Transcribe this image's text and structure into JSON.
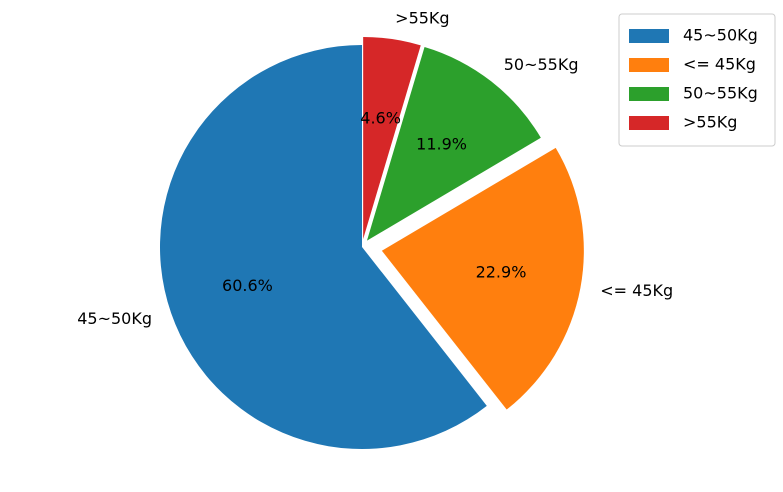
{
  "chart_data": {
    "type": "pie",
    "categories": [
      "45~50Kg",
      "<= 45Kg",
      "50~55Kg",
      ">55Kg"
    ],
    "values": [
      60.6,
      22.9,
      11.9,
      4.6
    ],
    "value_labels": [
      "60.6%",
      "22.9%",
      "11.9%",
      "4.6%"
    ],
    "colors": [
      "#1f77b4",
      "#ff7f0e",
      "#2ca02c",
      "#d62728"
    ],
    "explode": [
      0,
      0.1,
      0.04,
      0.04
    ],
    "start_angle": 90,
    "legend": "upper right"
  }
}
